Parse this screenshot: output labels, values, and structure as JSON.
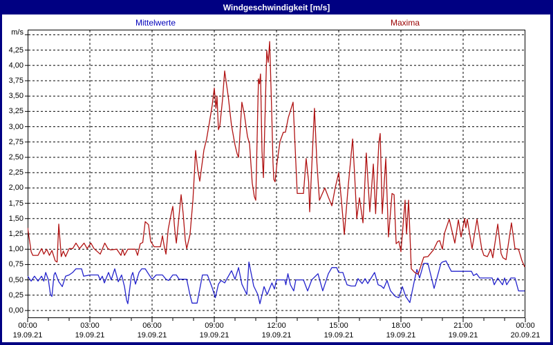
{
  "window": {
    "title": "Windgeschwindigkeit [m/s]"
  },
  "legend": {
    "mean_label": "Mittelwerte",
    "max_label": "Maxima"
  },
  "colors": {
    "frame": "#000082",
    "mean_line": "#2222cc",
    "max_line": "#b01212",
    "mean_text": "#0000bb",
    "max_text": "#990000",
    "grid": "#000000"
  },
  "chart_data": {
    "type": "line",
    "title": "Windgeschwindigkeit [m/s]",
    "xlabel": "",
    "ylabel": "m/s",
    "ylim": [
      0,
      4.5
    ],
    "y_tick_step": 0.25,
    "x_hours_span": 24,
    "x_tick_step_hours": 3,
    "x_minor_tick_hours": 1,
    "grid": "dashed",
    "legend_position": "top",
    "y_tick_labels": [
      "0,00",
      "0,25",
      "0,50",
      "0,75",
      "1,00",
      "1,25",
      "1,50",
      "1,75",
      "2,00",
      "2,25",
      "2,50",
      "2,75",
      "3,00",
      "3,25",
      "3,50",
      "3,75",
      "4,00",
      "4,25"
    ],
    "x_tick_labels": [
      {
        "time": "00:00",
        "date": "19.09.21"
      },
      {
        "time": "03:00",
        "date": "19.09.21"
      },
      {
        "time": "06:00",
        "date": "19.09.21"
      },
      {
        "time": "09:00",
        "date": "19.09.21"
      },
      {
        "time": "12:00",
        "date": "19.09.21"
      },
      {
        "time": "15:00",
        "date": "19.09.21"
      },
      {
        "time": "18:00",
        "date": "19.09.21"
      },
      {
        "time": "21:00",
        "date": "19.09.21"
      },
      {
        "time": "00:00",
        "date": "20.09.21"
      }
    ],
    "series": [
      {
        "name": "Mittelwerte",
        "color": "#2222cc",
        "points": [
          [
            0,
            0.56
          ],
          [
            0.17,
            0.48
          ],
          [
            0.33,
            0.56
          ],
          [
            0.5,
            0.48
          ],
          [
            0.67,
            0.56
          ],
          [
            0.78,
            0.48
          ],
          [
            0.87,
            0.62
          ],
          [
            1,
            0.5
          ],
          [
            1.1,
            0.26
          ],
          [
            1.17,
            0.23
          ],
          [
            1.27,
            0.58
          ],
          [
            1.33,
            0.62
          ],
          [
            1.5,
            0.47
          ],
          [
            1.67,
            0.39
          ],
          [
            1.83,
            0.56
          ],
          [
            2,
            0.58
          ],
          [
            2.17,
            0.62
          ],
          [
            2.33,
            0.68
          ],
          [
            2.6,
            0.68
          ],
          [
            2.7,
            0.56
          ],
          [
            3,
            0.58
          ],
          [
            3.4,
            0.58
          ],
          [
            3.5,
            0.5
          ],
          [
            3.6,
            0.56
          ],
          [
            3.7,
            0.45
          ],
          [
            3.9,
            0.62
          ],
          [
            4.03,
            0.5
          ],
          [
            4.2,
            0.68
          ],
          [
            4.37,
            0.47
          ],
          [
            4.53,
            0.58
          ],
          [
            4.67,
            0.39
          ],
          [
            4.77,
            0.17
          ],
          [
            4.83,
            0.11
          ],
          [
            5,
            0.56
          ],
          [
            5.07,
            0.62
          ],
          [
            5.2,
            0.43
          ],
          [
            5.37,
            0.62
          ],
          [
            5.5,
            0.68
          ],
          [
            5.67,
            0.68
          ],
          [
            5.9,
            0.56
          ],
          [
            6,
            0.51
          ],
          [
            6.2,
            0.58
          ],
          [
            6.5,
            0.58
          ],
          [
            6.67,
            0.51
          ],
          [
            6.8,
            0.49
          ],
          [
            7,
            0.58
          ],
          [
            7.17,
            0.58
          ],
          [
            7.3,
            0.51
          ],
          [
            7.67,
            0.51
          ],
          [
            7.83,
            0.25
          ],
          [
            7.93,
            0.12
          ],
          [
            8.17,
            0.12
          ],
          [
            8.3,
            0.35
          ],
          [
            8.43,
            0.58
          ],
          [
            8.67,
            0.58
          ],
          [
            8.9,
            0.37
          ],
          [
            9.05,
            0.21
          ],
          [
            9.2,
            0.43
          ],
          [
            9.33,
            0.49
          ],
          [
            9.5,
            0.45
          ],
          [
            9.83,
            0.65
          ],
          [
            10,
            0.51
          ],
          [
            10.17,
            0.7
          ],
          [
            10.33,
            0.43
          ],
          [
            10.57,
            0.26
          ],
          [
            10.67,
            0.79
          ],
          [
            10.9,
            0.4
          ],
          [
            11.1,
            0.26
          ],
          [
            11.2,
            0.11
          ],
          [
            11.4,
            0.39
          ],
          [
            11.55,
            0.26
          ],
          [
            11.78,
            0.45
          ],
          [
            11.9,
            0.35
          ],
          [
            12,
            0.5
          ],
          [
            12.4,
            0.5
          ],
          [
            12.45,
            0.42
          ],
          [
            12.55,
            0.6
          ],
          [
            12.67,
            0.42
          ],
          [
            12.83,
            0.32
          ],
          [
            12.93,
            0.5
          ],
          [
            13.3,
            0.5
          ],
          [
            13.5,
            0.32
          ],
          [
            13.7,
            0.5
          ],
          [
            14,
            0.6
          ],
          [
            14.23,
            0.32
          ],
          [
            14.5,
            0.6
          ],
          [
            14.67,
            0.7
          ],
          [
            14.9,
            0.7
          ],
          [
            15,
            0.62
          ],
          [
            15.2,
            0.62
          ],
          [
            15.4,
            0.42
          ],
          [
            15.6,
            0.4
          ],
          [
            15.8,
            0.4
          ],
          [
            15.93,
            0.52
          ],
          [
            16.13,
            0.44
          ],
          [
            16.27,
            0.52
          ],
          [
            16.4,
            0.44
          ],
          [
            16.73,
            0.62
          ],
          [
            16.9,
            0.42
          ],
          [
            17.05,
            0.4
          ],
          [
            17.17,
            0.36
          ],
          [
            17.33,
            0.49
          ],
          [
            17.5,
            0.32
          ],
          [
            17.73,
            0.23
          ],
          [
            17.9,
            0.21
          ],
          [
            18.07,
            0.39
          ],
          [
            18.23,
            0.23
          ],
          [
            18.43,
            0.13
          ],
          [
            18.67,
            0.52
          ],
          [
            18.77,
            0.67
          ],
          [
            18.9,
            0.53
          ],
          [
            19.1,
            0.77
          ],
          [
            19.3,
            0.77
          ],
          [
            19.6,
            0.36
          ],
          [
            19.93,
            0.77
          ],
          [
            20,
            0.79
          ],
          [
            20.17,
            0.81
          ],
          [
            20.43,
            0.64
          ],
          [
            21.4,
            0.64
          ],
          [
            21.5,
            0.57
          ],
          [
            21.65,
            0.6
          ],
          [
            21.8,
            0.53
          ],
          [
            22.4,
            0.53
          ],
          [
            22.5,
            0.42
          ],
          [
            22.67,
            0.53
          ],
          [
            22.9,
            0.42
          ],
          [
            23,
            0.53
          ],
          [
            23.1,
            0.42
          ],
          [
            23.3,
            0.53
          ],
          [
            23.5,
            0.53
          ],
          [
            23.67,
            0.32
          ],
          [
            23.97,
            0.32
          ]
        ]
      },
      {
        "name": "Maxima",
        "color": "#b01212",
        "points": [
          [
            0,
            1.35
          ],
          [
            0.17,
            0.96
          ],
          [
            0.25,
            0.9
          ],
          [
            0.5,
            0.9
          ],
          [
            0.67,
            1.01
          ],
          [
            0.78,
            0.92
          ],
          [
            0.92,
            1
          ],
          [
            1.05,
            0.9
          ],
          [
            1.17,
            0.98
          ],
          [
            1.33,
            0.81
          ],
          [
            1.42,
            0.79
          ],
          [
            1.5,
            1.41
          ],
          [
            1.62,
            0.88
          ],
          [
            1.72,
            0.97
          ],
          [
            1.83,
            0.88
          ],
          [
            2,
            1.01
          ],
          [
            2.17,
            1.01
          ],
          [
            2.33,
            1.1
          ],
          [
            2.5,
            1.01
          ],
          [
            2.72,
            1.1
          ],
          [
            2.87,
            1.01
          ],
          [
            3.05,
            1.1
          ],
          [
            3.2,
            1.01
          ],
          [
            3.5,
            0.92
          ],
          [
            3.72,
            1.1
          ],
          [
            3.87,
            1.01
          ],
          [
            4,
            0.99
          ],
          [
            4.3,
            1
          ],
          [
            4.5,
            0.9
          ],
          [
            4.58,
            1
          ],
          [
            4.67,
            0.9
          ],
          [
            4.83,
            1
          ],
          [
            5.2,
            1
          ],
          [
            5.3,
            0.9
          ],
          [
            5.43,
            1.09
          ],
          [
            5.55,
            1.11
          ],
          [
            5.67,
            1.45
          ],
          [
            5.83,
            1.4
          ],
          [
            5.93,
            1.13
          ],
          [
            6.1,
            1.04
          ],
          [
            6.4,
            1.04
          ],
          [
            6.5,
            1.22
          ],
          [
            6.6,
            1.02
          ],
          [
            6.67,
            0.92
          ],
          [
            6.78,
            1.33
          ],
          [
            6.9,
            1.54
          ],
          [
            7,
            1.7
          ],
          [
            7.1,
            1.3
          ],
          [
            7.17,
            1.1
          ],
          [
            7.4,
            1.89
          ],
          [
            7.5,
            1.58
          ],
          [
            7.6,
            1.15
          ],
          [
            7.67,
            1.01
          ],
          [
            7.83,
            1.24
          ],
          [
            7.97,
            1.8
          ],
          [
            8.1,
            2.61
          ],
          [
            8.2,
            2.3
          ],
          [
            8.3,
            2.11
          ],
          [
            8.5,
            2.62
          ],
          [
            8.63,
            2.8
          ],
          [
            8.77,
            3.08
          ],
          [
            8.9,
            3.35
          ],
          [
            9,
            3.63
          ],
          [
            9.08,
            3.3
          ],
          [
            9.13,
            3.5
          ],
          [
            9.2,
            2.95
          ],
          [
            9.27,
            3.02
          ],
          [
            9.4,
            3.45
          ],
          [
            9.5,
            3.91
          ],
          [
            9.67,
            3.5
          ],
          [
            9.83,
            3.02
          ],
          [
            10,
            2.7
          ],
          [
            10.1,
            2.56
          ],
          [
            10.17,
            2.5
          ],
          [
            10.33,
            3.4
          ],
          [
            10.45,
            3.2
          ],
          [
            10.6,
            2.84
          ],
          [
            10.7,
            2.72
          ],
          [
            10.83,
            2.08
          ],
          [
            10.93,
            1.86
          ],
          [
            11,
            1.8
          ],
          [
            11.13,
            3.78
          ],
          [
            11.18,
            3.7
          ],
          [
            11.23,
            3.86
          ],
          [
            11.3,
            2.6
          ],
          [
            11.37,
            2.17
          ],
          [
            11.53,
            4.24
          ],
          [
            11.6,
            4.05
          ],
          [
            11.67,
            4.39
          ],
          [
            11.77,
            3.23
          ],
          [
            11.83,
            2.42
          ],
          [
            11.87,
            2.14
          ],
          [
            11.93,
            2.1
          ],
          [
            12.03,
            2.42
          ],
          [
            12.17,
            2.76
          ],
          [
            12.33,
            2.91
          ],
          [
            12.43,
            2.91
          ],
          [
            12.57,
            3.15
          ],
          [
            12.8,
            3.4
          ],
          [
            13,
            1.91
          ],
          [
            13.3,
            1.91
          ],
          [
            13.43,
            2.48
          ],
          [
            13.55,
            2.1
          ],
          [
            13.6,
            1.61
          ],
          [
            13.83,
            3.3
          ],
          [
            13.95,
            2.4
          ],
          [
            14.07,
            1.8
          ],
          [
            14.33,
            2
          ],
          [
            14.5,
            1.85
          ],
          [
            14.67,
            1.71
          ],
          [
            14.83,
            2
          ],
          [
            15,
            2.25
          ],
          [
            15.13,
            1.8
          ],
          [
            15.27,
            1.24
          ],
          [
            15.45,
            2
          ],
          [
            15.67,
            2.8
          ],
          [
            15.77,
            2.2
          ],
          [
            15.87,
            1.5
          ],
          [
            16,
            1.84
          ],
          [
            16.17,
            1.43
          ],
          [
            16.33,
            2.57
          ],
          [
            16.5,
            1.61
          ],
          [
            16.67,
            2.39
          ],
          [
            16.78,
            1.58
          ],
          [
            16.93,
            2.72
          ],
          [
            17,
            2.89
          ],
          [
            17.1,
            1.58
          ],
          [
            17.27,
            2.48
          ],
          [
            17.4,
            1.2
          ],
          [
            17.57,
            1.91
          ],
          [
            17.67,
            1.89
          ],
          [
            17.77,
            1.09
          ],
          [
            17.9,
            1.13
          ],
          [
            18,
            0.96
          ],
          [
            18.2,
            1.8
          ],
          [
            18.27,
            1.25
          ],
          [
            18.37,
            1.8
          ],
          [
            18.5,
            0.68
          ],
          [
            18.67,
            0.62
          ],
          [
            18.83,
            0.59
          ],
          [
            19.1,
            0.87
          ],
          [
            19.3,
            0.88
          ],
          [
            19.57,
            0.99
          ],
          [
            19.77,
            1.13
          ],
          [
            19.87,
            1.14
          ],
          [
            20,
            1
          ],
          [
            20.1,
            1.26
          ],
          [
            20.33,
            1.49
          ],
          [
            20.6,
            1.1
          ],
          [
            20.77,
            1.48
          ],
          [
            20.9,
            1.2
          ],
          [
            21.07,
            1.5
          ],
          [
            21.13,
            1.35
          ],
          [
            21.2,
            1.49
          ],
          [
            21.43,
            1.01
          ],
          [
            21.67,
            1.49
          ],
          [
            21.9,
            1
          ],
          [
            22,
            0.9
          ],
          [
            22.17,
            0.88
          ],
          [
            22.33,
            1
          ],
          [
            22.43,
            0.86
          ],
          [
            22.67,
            1.41
          ],
          [
            22.83,
            0.93
          ],
          [
            22.92,
            0.86
          ],
          [
            23.07,
            0.83
          ],
          [
            23.33,
            1.43
          ],
          [
            23.5,
            1.01
          ],
          [
            23.67,
            1
          ],
          [
            23.83,
            0.82
          ],
          [
            23.97,
            0.71
          ]
        ]
      }
    ]
  }
}
